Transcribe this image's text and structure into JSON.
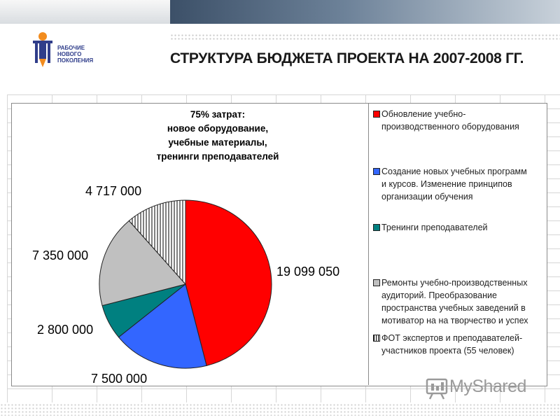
{
  "header": {
    "logo_lines": [
      "РАБОЧИЕ",
      "НОВОГО",
      "ПОКОЛЕНИЯ"
    ],
    "title": "СТРУКТУРА БЮДЖЕТА ПРОЕКТА НА 2007-2008 ГГ."
  },
  "chart_data": {
    "type": "pie",
    "annotation_lines": [
      "75% затрат:",
      "новое оборудование,",
      "учебные материалы,",
      "тренинги преподавателей"
    ],
    "slices": [
      {
        "label": "Обновление учебно-производственного оборудования",
        "value": 19099050,
        "value_label": "19 099 050",
        "color": "#ff0000",
        "pattern": "solid"
      },
      {
        "label": "Создание новых учебных программ и курсов. Изменение принципов организации обучения",
        "value": 7500000,
        "value_label": "7 500 000",
        "color": "#3366ff",
        "pattern": "solid"
      },
      {
        "label": "Тренинги преподавателей",
        "value": 2800000,
        "value_label": "2 800 000",
        "color": "#008080",
        "pattern": "solid"
      },
      {
        "label": "Ремонты учебно-производственных аудиторий. Преобразование пространства учебных заведений в мотиватор на на творчество и успех",
        "value": 7350000,
        "value_label": "7 350 000",
        "color": "#c0c0c0",
        "pattern": "solid"
      },
      {
        "label": "ФОТ экспертов и преподавателей-участников проекта (55 человек)",
        "value": 4717000,
        "value_label": "4 717 000",
        "color": "#ffffff",
        "pattern": "vertical-lines"
      }
    ],
    "legend_position": "right"
  },
  "legend_lines": [
    [
      "Обновление учебно-",
      "производственного оборудования"
    ],
    [
      "Создание новых учебных программ",
      "и курсов. Изменение принципов",
      "организации обучения"
    ],
    [
      "Тренинги преподавателей"
    ],
    [
      "Ремонты учебно-производственных",
      "аудиторий. Преобразование",
      "пространства учебных заведений в",
      "мотиватор на на творчество и успех"
    ],
    [
      "ФОТ экспертов и преподавателей-",
      "участников проекта (55 человек)"
    ]
  ],
  "watermark": {
    "text": "MyShared"
  }
}
